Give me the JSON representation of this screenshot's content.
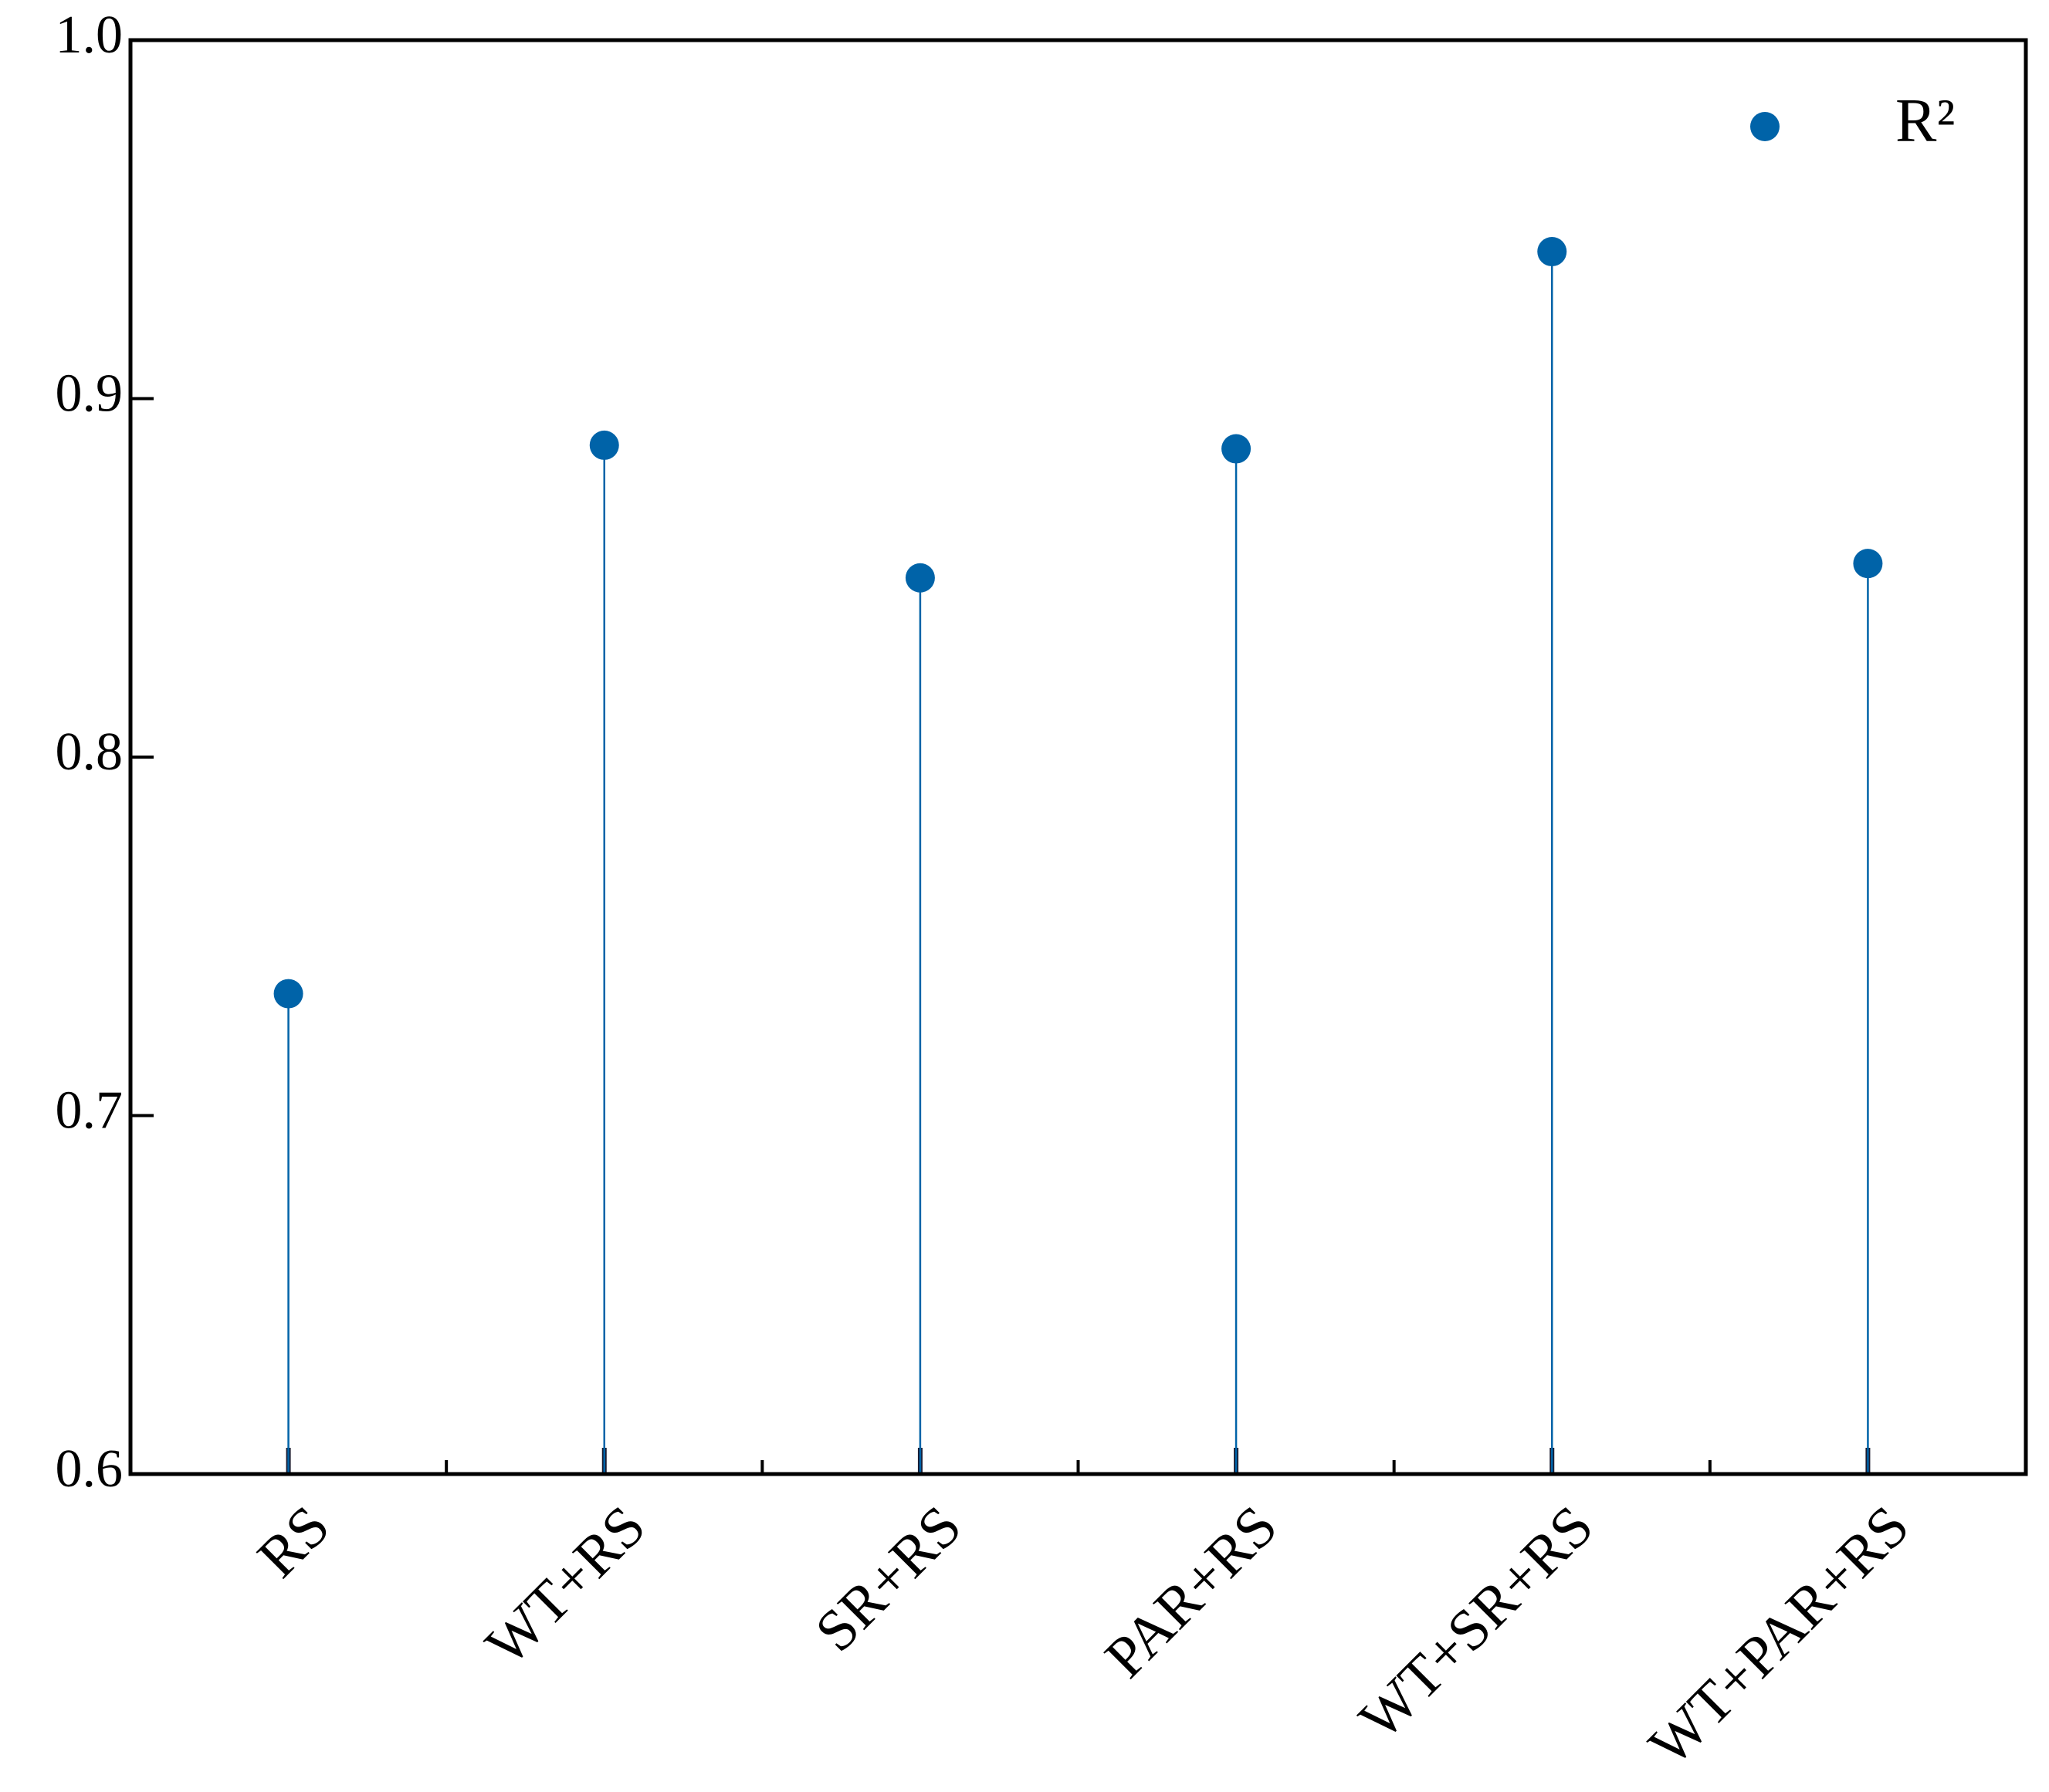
{
  "chart_data": {
    "type": "lollipop",
    "categories": [
      "RS",
      "WT+RS",
      "SR+RS",
      "PAR+RS",
      "WT+SR+RS",
      "WT+PAR+RS"
    ],
    "series": [
      {
        "name": "R²",
        "color": "#0063a8",
        "values": [
          0.734,
          0.887,
          0.85,
          0.886,
          0.941,
          0.854
        ]
      }
    ],
    "ylim": [
      0.6,
      1.0
    ],
    "yticks": [
      0.6,
      0.7,
      0.8,
      0.9,
      {
        "value": 1.0,
        "label": "1.0"
      }
    ],
    "grid": false,
    "legend": "upper right"
  }
}
